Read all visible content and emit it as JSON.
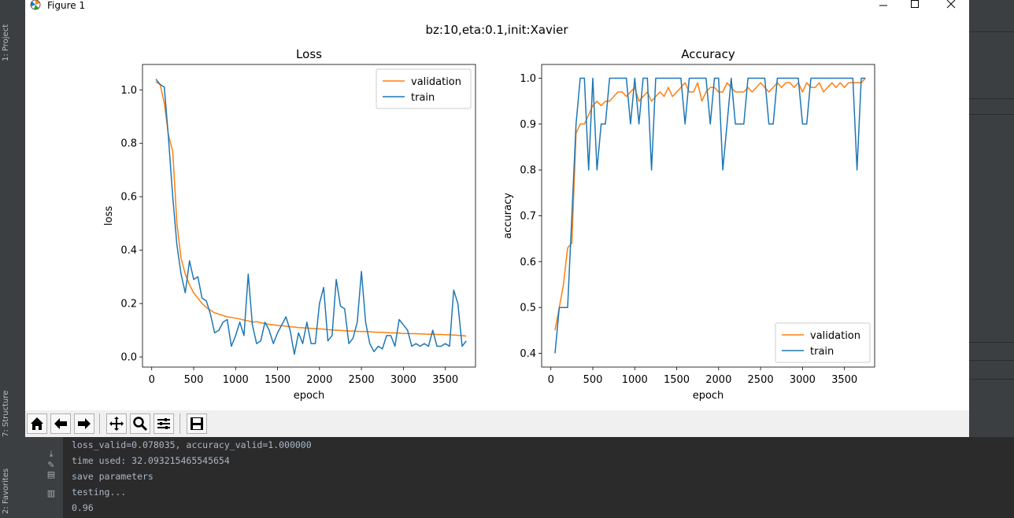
{
  "ide": {
    "left_tabs": [
      "1: Project",
      "7: Structure",
      "2: Favorites"
    ],
    "console_lines": [
      "loss_valid=0.078035, accuracy_valid=1.000000",
      "time used: 32.093215465545654",
      "save parameters",
      "testing...",
      "0.96"
    ]
  },
  "window": {
    "title": "Figure 1",
    "minimize_icon": "minimize-icon",
    "maximize_icon": "maximize-icon",
    "close_icon": "close-icon"
  },
  "toolbar": {
    "buttons": [
      "home-icon",
      "back-arrow-icon",
      "forward-arrow-icon",
      "pan-icon",
      "zoom-icon",
      "configure-subplots-icon",
      "save-icon"
    ]
  },
  "colors": {
    "validation": "#ff7f0e",
    "train": "#1f77b4"
  },
  "suptitle": "bz:10,eta:0.1,init:Xavier",
  "chart_data": [
    {
      "type": "line",
      "title": "Loss",
      "xlabel": "epoch",
      "ylabel": "loss",
      "xlim": [
        -110,
        3860
      ],
      "ylim": [
        -0.038,
        1.095
      ],
      "xticks": [
        0,
        500,
        1000,
        1500,
        2000,
        2500,
        3000,
        3500
      ],
      "yticks": [
        0.0,
        0.2,
        0.4,
        0.6,
        0.8,
        1.0
      ],
      "ytick_labels": [
        "0.0",
        "0.2",
        "0.4",
        "0.6",
        "0.8",
        "1.0"
      ],
      "legend": "upper right",
      "series": [
        {
          "name": "validation",
          "x": [
            50,
            100,
            150,
            200,
            250,
            300,
            350,
            400,
            450,
            500,
            550,
            600,
            650,
            700,
            750,
            800,
            850,
            900,
            950,
            1000,
            1050,
            1100,
            1150,
            1200,
            1250,
            1300,
            1350,
            1400,
            1450,
            1500,
            1550,
            1600,
            1650,
            1700,
            1750,
            1800,
            1850,
            1900,
            1950,
            2000,
            2050,
            2100,
            2150,
            2200,
            2250,
            2300,
            2350,
            2400,
            2450,
            2500,
            2550,
            2600,
            2650,
            2700,
            2750,
            2800,
            2850,
            2900,
            2950,
            3000,
            3050,
            3100,
            3150,
            3200,
            3250,
            3300,
            3350,
            3400,
            3450,
            3500,
            3550,
            3600,
            3650,
            3700,
            3750
          ],
          "values": [
            1.03,
            1.02,
            0.95,
            0.83,
            0.77,
            0.5,
            0.37,
            0.31,
            0.27,
            0.24,
            0.22,
            0.2,
            0.185,
            0.175,
            0.165,
            0.16,
            0.155,
            0.15,
            0.148,
            0.145,
            0.142,
            0.138,
            0.135,
            0.13,
            0.132,
            0.128,
            0.125,
            0.122,
            0.12,
            0.118,
            0.117,
            0.115,
            0.113,
            0.112,
            0.11,
            0.109,
            0.108,
            0.107,
            0.106,
            0.105,
            0.104,
            0.102,
            0.101,
            0.1,
            0.099,
            0.098,
            0.097,
            0.097,
            0.096,
            0.095,
            0.095,
            0.094,
            0.093,
            0.092,
            0.092,
            0.091,
            0.09,
            0.09,
            0.089,
            0.088,
            0.088,
            0.087,
            0.087,
            0.086,
            0.086,
            0.085,
            0.085,
            0.084,
            0.084,
            0.083,
            0.083,
            0.082,
            0.081,
            0.08,
            0.078
          ]
        },
        {
          "name": "train",
          "x": [
            50,
            100,
            150,
            200,
            250,
            300,
            350,
            400,
            450,
            500,
            550,
            600,
            650,
            700,
            750,
            800,
            850,
            900,
            950,
            1000,
            1050,
            1100,
            1150,
            1200,
            1250,
            1300,
            1350,
            1400,
            1450,
            1500,
            1550,
            1600,
            1650,
            1700,
            1750,
            1800,
            1850,
            1900,
            1950,
            2000,
            2050,
            2100,
            2150,
            2200,
            2250,
            2300,
            2350,
            2400,
            2450,
            2500,
            2550,
            2600,
            2650,
            2700,
            2750,
            2800,
            2850,
            2900,
            2950,
            3000,
            3050,
            3100,
            3150,
            3200,
            3250,
            3300,
            3350,
            3400,
            3450,
            3500,
            3550,
            3600,
            3650,
            3700,
            3750
          ],
          "values": [
            1.04,
            1.02,
            1.01,
            0.82,
            0.6,
            0.42,
            0.31,
            0.24,
            0.36,
            0.29,
            0.3,
            0.22,
            0.21,
            0.16,
            0.09,
            0.1,
            0.13,
            0.14,
            0.04,
            0.08,
            0.13,
            0.08,
            0.31,
            0.12,
            0.05,
            0.06,
            0.13,
            0.1,
            0.05,
            0.09,
            0.12,
            0.15,
            0.1,
            0.01,
            0.09,
            0.05,
            0.13,
            0.05,
            0.05,
            0.2,
            0.26,
            0.06,
            0.08,
            0.29,
            0.19,
            0.18,
            0.05,
            0.07,
            0.13,
            0.32,
            0.13,
            0.05,
            0.02,
            0.04,
            0.03,
            0.08,
            0.08,
            0.04,
            0.14,
            0.12,
            0.1,
            0.04,
            0.05,
            0.04,
            0.05,
            0.04,
            0.1,
            0.04,
            0.04,
            0.05,
            0.04,
            0.25,
            0.2,
            0.04,
            0.06
          ]
        }
      ]
    },
    {
      "type": "line",
      "title": "Accuracy",
      "xlabel": "epoch",
      "ylabel": "accuracy",
      "xlim": [
        -110,
        3860
      ],
      "ylim": [
        0.37,
        1.03
      ],
      "xticks": [
        0,
        500,
        1000,
        1500,
        2000,
        2500,
        3000,
        3500
      ],
      "yticks": [
        0.4,
        0.5,
        0.6,
        0.7,
        0.8,
        0.9,
        1.0
      ],
      "ytick_labels": [
        "0.4",
        "0.5",
        "0.6",
        "0.7",
        "0.8",
        "0.9",
        "1.0"
      ],
      "legend": "lower right",
      "series": [
        {
          "name": "validation",
          "x": [
            50,
            100,
            150,
            200,
            250,
            300,
            350,
            400,
            450,
            500,
            550,
            600,
            650,
            700,
            750,
            800,
            850,
            900,
            950,
            1000,
            1050,
            1100,
            1150,
            1200,
            1250,
            1300,
            1350,
            1400,
            1450,
            1500,
            1550,
            1600,
            1650,
            1700,
            1750,
            1800,
            1850,
            1900,
            1950,
            2000,
            2050,
            2100,
            2150,
            2200,
            2250,
            2300,
            2350,
            2400,
            2450,
            2500,
            2550,
            2600,
            2650,
            2700,
            2750,
            2800,
            2850,
            2900,
            2950,
            3000,
            3050,
            3100,
            3150,
            3200,
            3250,
            3300,
            3350,
            3400,
            3450,
            3500,
            3550,
            3600,
            3650,
            3700,
            3750
          ],
          "values": [
            0.45,
            0.5,
            0.55,
            0.63,
            0.64,
            0.88,
            0.9,
            0.9,
            0.92,
            0.94,
            0.95,
            0.94,
            0.95,
            0.95,
            0.96,
            0.97,
            0.97,
            0.96,
            0.97,
            0.98,
            0.95,
            0.96,
            0.97,
            0.95,
            0.96,
            0.97,
            0.96,
            0.98,
            0.96,
            0.97,
            0.98,
            0.99,
            0.97,
            0.97,
            0.99,
            0.95,
            0.97,
            0.98,
            0.98,
            0.97,
            0.97,
            0.99,
            0.98,
            0.97,
            0.97,
            0.97,
            0.98,
            0.97,
            0.98,
            0.99,
            0.98,
            0.97,
            0.98,
            0.99,
            0.98,
            0.99,
            0.99,
            0.98,
            0.99,
            0.97,
            0.99,
            0.98,
            0.98,
            0.99,
            0.97,
            0.98,
            0.99,
            0.98,
            0.99,
            0.98,
            0.99,
            0.99,
            0.99,
            0.99,
            1.0
          ]
        },
        {
          "name": "train",
          "x": [
            50,
            100,
            150,
            200,
            250,
            300,
            350,
            400,
            450,
            500,
            550,
            600,
            650,
            700,
            750,
            800,
            850,
            900,
            950,
            1000,
            1050,
            1100,
            1150,
            1200,
            1250,
            1300,
            1350,
            1400,
            1450,
            1500,
            1550,
            1600,
            1650,
            1700,
            1750,
            1800,
            1850,
            1900,
            1950,
            2000,
            2050,
            2100,
            2150,
            2200,
            2250,
            2300,
            2350,
            2400,
            2450,
            2500,
            2550,
            2600,
            2650,
            2700,
            2750,
            2800,
            2850,
            2900,
            2950,
            3000,
            3050,
            3100,
            3150,
            3200,
            3250,
            3300,
            3350,
            3400,
            3450,
            3500,
            3550,
            3600,
            3650,
            3700,
            3750
          ],
          "values": [
            0.4,
            0.5,
            0.5,
            0.5,
            0.7,
            0.9,
            1.0,
            1.0,
            0.8,
            1.0,
            0.8,
            0.9,
            0.9,
            1.0,
            1.0,
            1.0,
            1.0,
            1.0,
            0.9,
            1.0,
            0.9,
            1.0,
            1.0,
            0.8,
            1.0,
            1.0,
            1.0,
            1.0,
            1.0,
            1.0,
            1.0,
            0.9,
            1.0,
            1.0,
            1.0,
            1.0,
            1.0,
            0.9,
            1.0,
            1.0,
            0.8,
            0.9,
            1.0,
            0.9,
            0.9,
            0.9,
            1.0,
            1.0,
            1.0,
            1.0,
            1.0,
            0.9,
            0.9,
            1.0,
            1.0,
            1.0,
            1.0,
            1.0,
            1.0,
            0.9,
            0.9,
            1.0,
            1.0,
            1.0,
            1.0,
            1.0,
            1.0,
            1.0,
            1.0,
            1.0,
            1.0,
            1.0,
            0.8,
            1.0,
            1.0
          ]
        }
      ]
    }
  ]
}
